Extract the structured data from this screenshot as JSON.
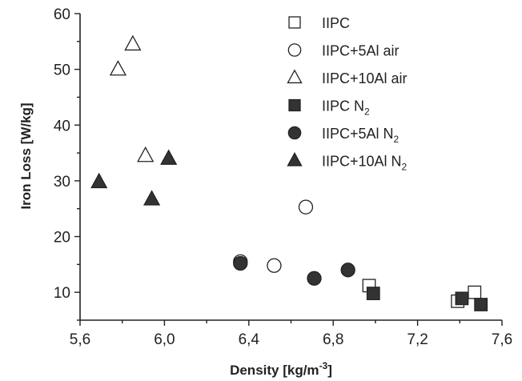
{
  "chart_data": {
    "type": "scatter",
    "xlabel": "Density [kg/m",
    "xlabel_sup": "-3",
    "xlabel_end": "]",
    "ylabel": "Iron Loss [W/kg]",
    "xlim": [
      5.6,
      7.6
    ],
    "ylim": [
      5,
      60
    ],
    "xticks": [
      "5,6",
      "6,0",
      "6,4",
      "6,8",
      "7,2",
      "7,6"
    ],
    "xtick_values": [
      5.6,
      6.0,
      6.4,
      6.8,
      7.2,
      7.6
    ],
    "yticks": [
      "10",
      "20",
      "30",
      "40",
      "50",
      "60"
    ],
    "ytick_values": [
      10,
      20,
      30,
      40,
      50,
      60
    ],
    "grid": false,
    "legend_position": "top-right",
    "series": [
      {
        "name": "IIPC",
        "sub": "",
        "marker": "square",
        "filled": false,
        "points": [
          [
            6.97,
            11.2
          ],
          [
            7.39,
            8.4
          ],
          [
            7.47,
            10.0
          ]
        ]
      },
      {
        "name": "IIPC+5Al air",
        "sub": "",
        "marker": "circle",
        "filled": false,
        "points": [
          [
            6.36,
            15.5
          ],
          [
            6.52,
            14.8
          ],
          [
            6.67,
            25.3
          ]
        ]
      },
      {
        "name": "IIPC+10Al air",
        "sub": "",
        "marker": "triangle",
        "filled": false,
        "points": [
          [
            5.78,
            50.0
          ],
          [
            5.85,
            54.5
          ],
          [
            5.91,
            34.5
          ]
        ]
      },
      {
        "name": "IIPC N",
        "sub": "2",
        "marker": "square",
        "filled": true,
        "points": [
          [
            6.99,
            9.8
          ],
          [
            7.41,
            8.9
          ],
          [
            7.5,
            7.8
          ]
        ]
      },
      {
        "name": "IIPC+5Al N",
        "sub": "2",
        "marker": "circle",
        "filled": true,
        "points": [
          [
            6.36,
            15.2
          ],
          [
            6.71,
            12.5
          ],
          [
            6.87,
            14.0
          ]
        ]
      },
      {
        "name": "IIPC+10Al N",
        "sub": "2",
        "marker": "triangle",
        "filled": true,
        "points": [
          [
            5.69,
            29.8
          ],
          [
            5.94,
            26.7
          ],
          [
            6.02,
            34.0
          ]
        ]
      }
    ]
  }
}
